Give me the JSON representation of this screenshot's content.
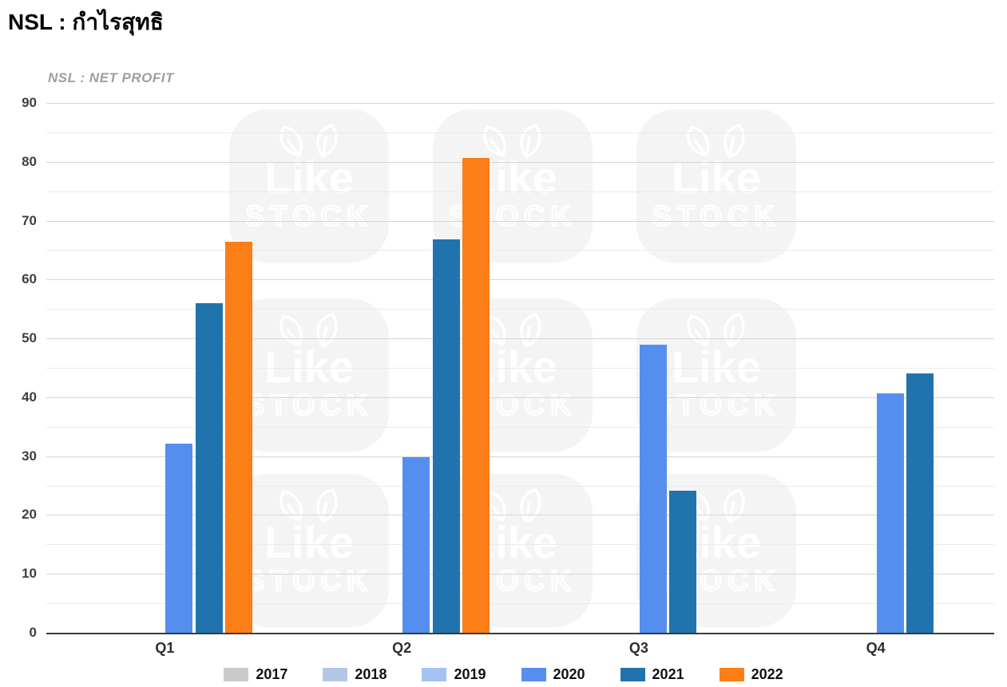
{
  "chart_data": {
    "type": "bar",
    "title": "NSL : กำไรสุทธิ",
    "subtitle": "NSL : NET PROFIT",
    "categories": [
      "Q1",
      "Q2",
      "Q3",
      "Q4"
    ],
    "series": [
      {
        "name": "2017",
        "color": "#c9c9c9",
        "values": [
          null,
          null,
          null,
          null
        ]
      },
      {
        "name": "2018",
        "color": "#b4c7e7",
        "values": [
          null,
          null,
          null,
          null
        ]
      },
      {
        "name": "2019",
        "color": "#a4c2f4",
        "values": [
          null,
          null,
          null,
          null
        ]
      },
      {
        "name": "2020",
        "color": "#548ff0",
        "values": [
          32.1,
          29.8,
          48.9,
          40.6
        ]
      },
      {
        "name": "2021",
        "color": "#2173ad",
        "values": [
          56.0,
          66.8,
          24.1,
          44.1
        ]
      },
      {
        "name": "2022",
        "color": "#fb7e17",
        "values": [
          66.4,
          80.7,
          null,
          null
        ]
      }
    ],
    "xlabel": "",
    "ylabel": "",
    "ylim": [
      0,
      90
    ],
    "yticks": [
      0,
      10,
      20,
      30,
      40,
      50,
      60,
      70,
      80,
      90
    ],
    "ytick_minor_step": 5,
    "grid": true,
    "legend_position": "bottom",
    "legend": [
      "2017",
      "2018",
      "2019",
      "2020",
      "2021",
      "2022"
    ]
  },
  "watermark": {
    "line1": "Like",
    "line2": "STOCK",
    "icon": "leaf"
  }
}
